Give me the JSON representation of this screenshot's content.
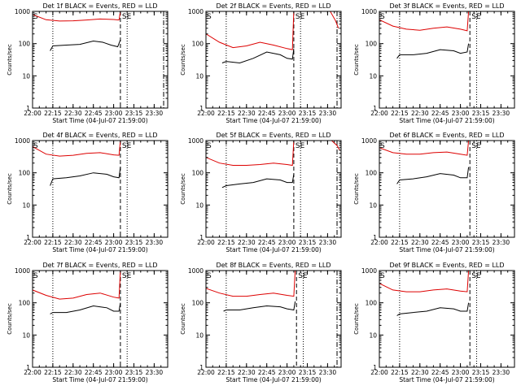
{
  "figure": {
    "x_axis_label": "Start Time (04-Jul-07 21:59:00)",
    "y_axis_label": "Counts/sec",
    "x_tick_labels": [
      "22:00",
      "22:15",
      "22:30",
      "22:45",
      "23:00",
      "23:15",
      "23:30"
    ],
    "y_tick_labels": [
      "1",
      "10",
      "100",
      "1000"
    ],
    "marker_labels": {
      "start": "S",
      "end": "SE"
    },
    "colors": {
      "events": "#000000",
      "lld": "#dd0000",
      "axes": "#000000",
      "background": "#ffffff"
    }
  },
  "chart_data": [
    {
      "type": "line",
      "title": "Det 1f BLACK = Events, RED = LLD",
      "xlim": [
        "22:00",
        "23:40"
      ],
      "ylim": [
        1,
        1000
      ],
      "yscale": "log",
      "xlabel": "Start Time (04-Jul-07 21:59:00)",
      "ylabel": "Counts/sec",
      "vlines": {
        "dashed": [
          "22:00",
          "23:05"
        ],
        "dotted": [
          "22:15",
          "23:10"
        ],
        "dashdot": [
          "23:37"
        ]
      },
      "series": [
        {
          "name": "LLD",
          "color": "#dd0000",
          "x": [
            "22:00",
            "22:10",
            "22:20",
            "22:30",
            "22:40",
            "22:50",
            "23:00",
            "23:04",
            "23:05",
            "23:07"
          ],
          "values": [
            800,
            550,
            500,
            510,
            540,
            580,
            560,
            540,
            1000,
            1000
          ]
        },
        {
          "name": "Events",
          "color": "#000000",
          "x": [
            "22:13",
            "22:15",
            "22:25",
            "22:35",
            "22:45",
            "22:52",
            "22:58",
            "23:03",
            "23:05"
          ],
          "values": [
            60,
            85,
            90,
            95,
            120,
            110,
            90,
            80,
            130
          ]
        }
      ]
    },
    {
      "type": "line",
      "title": "Det 2f BLACK = Events, RED = LLD",
      "xlim": [
        "22:00",
        "23:40"
      ],
      "ylim": [
        1,
        1000
      ],
      "yscale": "log",
      "xlabel": "Start Time (04-Jul-07 21:59:00)",
      "ylabel": "Counts/sec",
      "vlines": {
        "dashed": [
          "22:00",
          "23:05"
        ],
        "dotted": [
          "22:15",
          "23:10"
        ],
        "dashdot": [
          "23:37"
        ]
      },
      "series": [
        {
          "name": "LLD",
          "color": "#dd0000",
          "x": [
            "22:00",
            "22:10",
            "22:20",
            "22:30",
            "22:40",
            "22:50",
            "23:00",
            "23:04",
            "23:05",
            "23:08",
            "23:32",
            "23:36",
            "23:38"
          ],
          "values": [
            200,
            110,
            75,
            85,
            110,
            90,
            70,
            65,
            1000,
            1000,
            1000,
            500,
            300
          ]
        },
        {
          "name": "Events",
          "color": "#000000",
          "x": [
            "22:12",
            "22:15",
            "22:25",
            "22:35",
            "22:45",
            "22:55",
            "23:00",
            "23:04",
            "23:05"
          ],
          "values": [
            25,
            28,
            25,
            35,
            55,
            45,
            35,
            33,
            70
          ]
        }
      ]
    },
    {
      "type": "line",
      "title": "Det 3f BLACK = Events, RED = LLD",
      "xlim": [
        "22:00",
        "23:40"
      ],
      "ylim": [
        1,
        1000
      ],
      "yscale": "log",
      "xlabel": "Start Time (04-Jul-07 21:59:00)",
      "ylabel": "Counts/sec",
      "vlines": {
        "dashed": [
          "22:00",
          "23:07"
        ],
        "dotted": [
          "22:15",
          "23:12"
        ],
        "dashdot": []
      },
      "series": [
        {
          "name": "LLD",
          "color": "#dd0000",
          "x": [
            "22:00",
            "22:10",
            "22:20",
            "22:30",
            "22:40",
            "22:50",
            "23:00",
            "23:05",
            "23:06",
            "23:08"
          ],
          "values": [
            550,
            350,
            280,
            260,
            300,
            330,
            280,
            250,
            1000,
            1000
          ]
        },
        {
          "name": "Events",
          "color": "#000000",
          "x": [
            "22:13",
            "22:15",
            "22:25",
            "22:35",
            "22:45",
            "22:55",
            "23:00",
            "23:05",
            "23:06"
          ],
          "values": [
            35,
            45,
            45,
            50,
            65,
            60,
            50,
            55,
            100
          ]
        }
      ]
    },
    {
      "type": "line",
      "title": "Det 4f BLACK = Events, RED = LLD",
      "xlim": [
        "22:00",
        "23:40"
      ],
      "ylim": [
        1,
        1000
      ],
      "yscale": "log",
      "xlabel": "Start Time (04-Jul-07 21:59:00)",
      "ylabel": "Counts/sec",
      "vlines": {
        "dashed": [
          "22:00",
          "23:05"
        ],
        "dotted": [
          "22:15",
          "23:10"
        ],
        "dashdot": []
      },
      "series": [
        {
          "name": "LLD",
          "color": "#dd0000",
          "x": [
            "22:00",
            "22:10",
            "22:20",
            "22:30",
            "22:40",
            "22:50",
            "23:00",
            "23:04",
            "23:05",
            "23:07"
          ],
          "values": [
            650,
            380,
            330,
            350,
            400,
            420,
            360,
            350,
            1000,
            1000
          ]
        },
        {
          "name": "Events",
          "color": "#000000",
          "x": [
            "22:13",
            "22:15",
            "22:25",
            "22:35",
            "22:45",
            "22:55",
            "23:00",
            "23:04",
            "23:05"
          ],
          "values": [
            40,
            65,
            70,
            80,
            100,
            90,
            75,
            70,
            150
          ]
        }
      ]
    },
    {
      "type": "line",
      "title": "Det 5f BLACK = Events, RED = LLD",
      "xlim": [
        "22:00",
        "23:40"
      ],
      "ylim": [
        1,
        1000
      ],
      "yscale": "log",
      "xlabel": "Start Time (04-Jul-07 21:59:00)",
      "ylabel": "Counts/sec",
      "vlines": {
        "dashed": [
          "22:00",
          "23:05"
        ],
        "dotted": [
          "22:15",
          "23:10"
        ],
        "dashdot": [
          "23:37"
        ]
      },
      "series": [
        {
          "name": "LLD",
          "color": "#dd0000",
          "x": [
            "22:00",
            "22:10",
            "22:20",
            "22:30",
            "22:40",
            "22:50",
            "23:00",
            "23:04",
            "23:05",
            "23:08",
            "23:33",
            "23:37",
            "23:39"
          ],
          "values": [
            300,
            200,
            170,
            170,
            180,
            200,
            180,
            170,
            1000,
            1000,
            1000,
            700,
            500
          ]
        },
        {
          "name": "Events",
          "color": "#000000",
          "x": [
            "22:12",
            "22:15",
            "22:25",
            "22:35",
            "22:45",
            "22:55",
            "23:00",
            "23:04",
            "23:05"
          ],
          "values": [
            35,
            40,
            45,
            50,
            65,
            60,
            50,
            50,
            90
          ]
        }
      ]
    },
    {
      "type": "line",
      "title": "Det 6f BLACK = Events, RED = LLD",
      "xlim": [
        "22:00",
        "23:40"
      ],
      "ylim": [
        1,
        1000
      ],
      "yscale": "log",
      "xlabel": "Start Time (04-Jul-07 21:59:00)",
      "ylabel": "Counts/sec",
      "vlines": {
        "dashed": [
          "22:00",
          "23:07"
        ],
        "dotted": [
          "22:15",
          "23:12"
        ],
        "dashdot": []
      },
      "series": [
        {
          "name": "LLD",
          "color": "#dd0000",
          "x": [
            "22:00",
            "22:10",
            "22:20",
            "22:30",
            "22:40",
            "22:50",
            "23:00",
            "23:05",
            "23:06",
            "23:08"
          ],
          "values": [
            600,
            420,
            380,
            380,
            420,
            440,
            380,
            350,
            1000,
            1000
          ]
        },
        {
          "name": "Events",
          "color": "#000000",
          "x": [
            "22:13",
            "22:15",
            "22:25",
            "22:35",
            "22:45",
            "22:55",
            "23:00",
            "23:05",
            "23:06"
          ],
          "values": [
            45,
            60,
            65,
            75,
            95,
            85,
            70,
            70,
            150
          ]
        }
      ]
    },
    {
      "type": "line",
      "title": "Det 7f BLACK = Events, RED = LLD",
      "xlim": [
        "22:00",
        "23:40"
      ],
      "ylim": [
        1,
        1000
      ],
      "yscale": "log",
      "xlabel": "Start Time (04-Jul-07 21:59:00)",
      "ylabel": "Counts/sec",
      "vlines": {
        "dashed": [
          "22:00",
          "23:05"
        ],
        "dotted": [
          "22:15",
          "23:10"
        ],
        "dashdot": []
      },
      "series": [
        {
          "name": "LLD",
          "color": "#dd0000",
          "x": [
            "22:00",
            "22:10",
            "22:20",
            "22:30",
            "22:40",
            "22:50",
            "23:00",
            "23:04",
            "23:05",
            "23:07"
          ],
          "values": [
            250,
            170,
            130,
            140,
            180,
            200,
            150,
            140,
            1000,
            1000
          ]
        },
        {
          "name": "Events",
          "color": "#000000",
          "x": [
            "22:13",
            "22:15",
            "22:25",
            "22:35",
            "22:45",
            "22:55",
            "23:00",
            "23:04",
            "23:05"
          ],
          "values": [
            45,
            50,
            50,
            60,
            80,
            70,
            55,
            55,
            100
          ]
        }
      ]
    },
    {
      "type": "line",
      "title": "Det 8f BLACK = Events, RED = LLD",
      "xlim": [
        "22:00",
        "23:40"
      ],
      "ylim": [
        1,
        1000
      ],
      "yscale": "log",
      "xlabel": "Start Time (04-Jul-07 21:59:00)",
      "ylabel": "Counts/sec",
      "vlines": {
        "dashed": [
          "22:00",
          "23:07"
        ],
        "dotted": [
          "22:15",
          "23:12"
        ],
        "dashdot": [
          "23:37"
        ]
      },
      "series": [
        {
          "name": "LLD",
          "color": "#dd0000",
          "x": [
            "22:00",
            "22:10",
            "22:20",
            "22:30",
            "22:40",
            "22:50",
            "23:00",
            "23:05",
            "23:06",
            "23:08"
          ],
          "values": [
            280,
            200,
            160,
            160,
            180,
            200,
            170,
            160,
            1000,
            1000
          ]
        },
        {
          "name": "Events",
          "color": "#000000",
          "x": [
            "22:13",
            "22:15",
            "22:25",
            "22:35",
            "22:45",
            "22:55",
            "23:00",
            "23:05",
            "23:06"
          ],
          "values": [
            55,
            60,
            60,
            70,
            80,
            75,
            65,
            60,
            110
          ]
        }
      ]
    },
    {
      "type": "line",
      "title": "Det 9f BLACK = Events, RED = LLD",
      "xlim": [
        "22:00",
        "23:40"
      ],
      "ylim": [
        1,
        1000
      ],
      "yscale": "log",
      "xlabel": "Start Time (04-Jul-07 21:59:00)",
      "ylabel": "Counts/sec",
      "vlines": {
        "dashed": [
          "22:00",
          "23:07"
        ],
        "dotted": [
          "22:15",
          "23:12"
        ],
        "dashdot": []
      },
      "series": [
        {
          "name": "LLD",
          "color": "#dd0000",
          "x": [
            "22:00",
            "22:10",
            "22:20",
            "22:30",
            "22:40",
            "22:50",
            "23:00",
            "23:05",
            "23:06",
            "23:08"
          ],
          "values": [
            400,
            250,
            220,
            220,
            250,
            270,
            230,
            220,
            1000,
            1000
          ]
        },
        {
          "name": "Events",
          "color": "#000000",
          "x": [
            "22:13",
            "22:15",
            "22:25",
            "22:35",
            "22:45",
            "22:55",
            "23:00",
            "23:05",
            "23:06"
          ],
          "values": [
            40,
            45,
            50,
            55,
            70,
            65,
            55,
            55,
            100
          ]
        }
      ]
    }
  ]
}
